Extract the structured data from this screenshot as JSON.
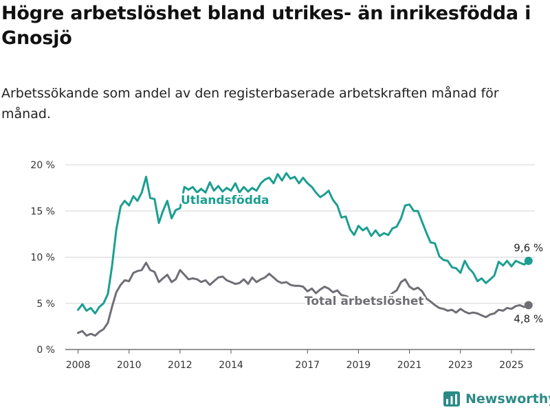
{
  "title": "Högre arbetslöshet bland utrikes- än inrikesfödda i Gnosjö",
  "subtitle": "Arbetssökande som andel av den registerbaserade arbetskraften månad för månad.",
  "brand": {
    "name": "Newsworthy",
    "icon": "bar-chart-logo-icon"
  },
  "colors": {
    "foreign_born": "#1b9e91",
    "total": "#706e75",
    "grid": "#d4d4d4",
    "brand": "#2b8a86"
  },
  "chart_data": {
    "type": "line",
    "title": "Högre arbetslöshet bland utrikes- än inrikesfödda i Gnosjö",
    "subtitle": "Arbetssökande som andel av den registerbaserade arbetskraften månad för månad.",
    "xlabel": "",
    "ylabel": "",
    "xlim": [
      2007.5,
      2025.92
    ],
    "ylim": [
      0,
      20
    ],
    "grid": true,
    "legend": "inline labels",
    "x_ticks": [
      {
        "value": 2008,
        "label": "2008"
      },
      {
        "value": 2010,
        "label": "2010"
      },
      {
        "value": 2012,
        "label": "2012"
      },
      {
        "value": 2014,
        "label": "2014"
      },
      {
        "value": 2017,
        "label": "2017"
      },
      {
        "value": 2019,
        "label": "2019"
      },
      {
        "value": 2021,
        "label": "2021"
      },
      {
        "value": 2023,
        "label": "2023"
      },
      {
        "value": 2025,
        "label": "2025"
      }
    ],
    "y_ticks": [
      {
        "value": 0,
        "label": "0 %"
      },
      {
        "value": 5,
        "label": "5 %"
      },
      {
        "value": 10,
        "label": "10 %"
      },
      {
        "value": 15,
        "label": "15 %"
      },
      {
        "value": 20,
        "label": "20 %"
      }
    ],
    "series": [
      {
        "name": "Utlandsfödda",
        "color": "#1b9e91",
        "end_label": "9,6 %",
        "points": [
          [
            2008.0,
            4.3
          ],
          [
            2008.17,
            4.9
          ],
          [
            2008.33,
            4.2
          ],
          [
            2008.5,
            4.5
          ],
          [
            2008.67,
            3.9
          ],
          [
            2008.83,
            4.6
          ],
          [
            2009.0,
            5.0
          ],
          [
            2009.17,
            6.0
          ],
          [
            2009.33,
            9.0
          ],
          [
            2009.5,
            13.0
          ],
          [
            2009.67,
            15.5
          ],
          [
            2009.83,
            16.1
          ],
          [
            2010.0,
            15.6
          ],
          [
            2010.17,
            16.6
          ],
          [
            2010.33,
            16.1
          ],
          [
            2010.5,
            17.0
          ],
          [
            2010.67,
            18.7
          ],
          [
            2010.83,
            16.4
          ],
          [
            2011.0,
            16.3
          ],
          [
            2011.17,
            13.7
          ],
          [
            2011.33,
            15.0
          ],
          [
            2011.5,
            16.1
          ],
          [
            2011.67,
            14.2
          ],
          [
            2011.83,
            15.1
          ],
          [
            2012.0,
            15.3
          ],
          [
            2012.17,
            17.6
          ],
          [
            2012.33,
            17.3
          ],
          [
            2012.5,
            17.6
          ],
          [
            2012.67,
            17.0
          ],
          [
            2012.83,
            17.4
          ],
          [
            2013.0,
            17.0
          ],
          [
            2013.17,
            18.1
          ],
          [
            2013.33,
            17.2
          ],
          [
            2013.5,
            17.7
          ],
          [
            2013.67,
            17.1
          ],
          [
            2013.83,
            17.5
          ],
          [
            2014.0,
            17.2
          ],
          [
            2014.17,
            18.0
          ],
          [
            2014.33,
            17.0
          ],
          [
            2014.5,
            17.6
          ],
          [
            2014.67,
            17.1
          ],
          [
            2014.83,
            17.5
          ],
          [
            2015.0,
            17.2
          ],
          [
            2015.17,
            18.0
          ],
          [
            2015.33,
            18.4
          ],
          [
            2015.5,
            18.6
          ],
          [
            2015.67,
            18.0
          ],
          [
            2015.83,
            19.0
          ],
          [
            2016.0,
            18.3
          ],
          [
            2016.17,
            19.1
          ],
          [
            2016.33,
            18.5
          ],
          [
            2016.5,
            18.7
          ],
          [
            2016.67,
            18.0
          ],
          [
            2016.83,
            18.6
          ],
          [
            2017.0,
            18.0
          ],
          [
            2017.17,
            17.6
          ],
          [
            2017.33,
            17.0
          ],
          [
            2017.5,
            16.5
          ],
          [
            2017.67,
            16.8
          ],
          [
            2017.83,
            17.2
          ],
          [
            2018.0,
            16.2
          ],
          [
            2018.17,
            15.6
          ],
          [
            2018.33,
            14.3
          ],
          [
            2018.5,
            14.4
          ],
          [
            2018.67,
            13.0
          ],
          [
            2018.83,
            12.4
          ],
          [
            2019.0,
            13.4
          ],
          [
            2019.17,
            12.9
          ],
          [
            2019.33,
            13.2
          ],
          [
            2019.5,
            12.3
          ],
          [
            2019.67,
            12.9
          ],
          [
            2019.83,
            12.3
          ],
          [
            2020.0,
            12.6
          ],
          [
            2020.17,
            12.4
          ],
          [
            2020.33,
            13.1
          ],
          [
            2020.5,
            13.3
          ],
          [
            2020.67,
            14.2
          ],
          [
            2020.83,
            15.6
          ],
          [
            2021.0,
            15.7
          ],
          [
            2021.17,
            15.0
          ],
          [
            2021.33,
            15.0
          ],
          [
            2021.5,
            13.8
          ],
          [
            2021.67,
            12.6
          ],
          [
            2021.83,
            11.6
          ],
          [
            2022.0,
            11.5
          ],
          [
            2022.17,
            10.1
          ],
          [
            2022.33,
            9.7
          ],
          [
            2022.5,
            9.6
          ],
          [
            2022.67,
            8.9
          ],
          [
            2022.83,
            8.8
          ],
          [
            2023.0,
            8.3
          ],
          [
            2023.17,
            9.6
          ],
          [
            2023.33,
            8.8
          ],
          [
            2023.5,
            8.3
          ],
          [
            2023.67,
            7.4
          ],
          [
            2023.83,
            7.7
          ],
          [
            2024.0,
            7.2
          ],
          [
            2024.17,
            7.6
          ],
          [
            2024.33,
            8.0
          ],
          [
            2024.5,
            9.5
          ],
          [
            2024.67,
            9.1
          ],
          [
            2024.83,
            9.6
          ],
          [
            2025.0,
            9.0
          ],
          [
            2025.17,
            9.6
          ],
          [
            2025.33,
            9.4
          ],
          [
            2025.5,
            9.2
          ],
          [
            2025.67,
            9.6
          ]
        ]
      },
      {
        "name": "Total arbetslöshet",
        "color": "#706e75",
        "end_label": "4,8 %",
        "points": [
          [
            2008.0,
            1.8
          ],
          [
            2008.17,
            2.0
          ],
          [
            2008.33,
            1.5
          ],
          [
            2008.5,
            1.7
          ],
          [
            2008.67,
            1.5
          ],
          [
            2008.83,
            1.9
          ],
          [
            2009.0,
            2.2
          ],
          [
            2009.17,
            2.9
          ],
          [
            2009.33,
            4.6
          ],
          [
            2009.5,
            6.2
          ],
          [
            2009.67,
            7.0
          ],
          [
            2009.83,
            7.5
          ],
          [
            2010.0,
            7.4
          ],
          [
            2010.17,
            8.3
          ],
          [
            2010.33,
            8.5
          ],
          [
            2010.5,
            8.6
          ],
          [
            2010.67,
            9.4
          ],
          [
            2010.83,
            8.6
          ],
          [
            2011.0,
            8.4
          ],
          [
            2011.17,
            7.3
          ],
          [
            2011.33,
            7.7
          ],
          [
            2011.5,
            8.1
          ],
          [
            2011.67,
            7.3
          ],
          [
            2011.83,
            7.6
          ],
          [
            2012.0,
            8.6
          ],
          [
            2012.17,
            8.1
          ],
          [
            2012.33,
            7.6
          ],
          [
            2012.5,
            7.7
          ],
          [
            2012.67,
            7.6
          ],
          [
            2012.83,
            7.3
          ],
          [
            2013.0,
            7.5
          ],
          [
            2013.17,
            7.0
          ],
          [
            2013.33,
            7.4
          ],
          [
            2013.5,
            7.8
          ],
          [
            2013.67,
            7.9
          ],
          [
            2013.83,
            7.5
          ],
          [
            2014.0,
            7.3
          ],
          [
            2014.17,
            7.1
          ],
          [
            2014.33,
            7.2
          ],
          [
            2014.5,
            7.6
          ],
          [
            2014.67,
            7.1
          ],
          [
            2014.83,
            7.8
          ],
          [
            2015.0,
            7.3
          ],
          [
            2015.17,
            7.6
          ],
          [
            2015.33,
            7.8
          ],
          [
            2015.5,
            8.2
          ],
          [
            2015.67,
            7.8
          ],
          [
            2015.83,
            7.4
          ],
          [
            2016.0,
            7.2
          ],
          [
            2016.17,
            7.3
          ],
          [
            2016.33,
            7.0
          ],
          [
            2016.5,
            6.9
          ],
          [
            2016.67,
            6.9
          ],
          [
            2016.83,
            6.8
          ],
          [
            2017.0,
            6.3
          ],
          [
            2017.17,
            6.6
          ],
          [
            2017.33,
            6.1
          ],
          [
            2017.5,
            6.5
          ],
          [
            2017.67,
            6.8
          ],
          [
            2017.83,
            6.6
          ],
          [
            2018.0,
            6.2
          ],
          [
            2018.17,
            6.4
          ],
          [
            2018.33,
            5.9
          ],
          [
            2018.5,
            5.8
          ],
          [
            2018.67,
            5.6
          ],
          [
            2018.83,
            5.4
          ],
          [
            2019.0,
            5.5
          ],
          [
            2019.17,
            5.3
          ],
          [
            2019.33,
            5.4
          ],
          [
            2019.5,
            5.2
          ],
          [
            2019.67,
            5.4
          ],
          [
            2019.83,
            5.2
          ],
          [
            2020.0,
            5.4
          ],
          [
            2020.17,
            5.7
          ],
          [
            2020.33,
            6.1
          ],
          [
            2020.5,
            6.4
          ],
          [
            2020.67,
            7.3
          ],
          [
            2020.83,
            7.6
          ],
          [
            2021.0,
            6.8
          ],
          [
            2021.17,
            6.5
          ],
          [
            2021.33,
            6.7
          ],
          [
            2021.5,
            6.3
          ],
          [
            2021.67,
            5.5
          ],
          [
            2021.83,
            5.2
          ],
          [
            2022.0,
            4.8
          ],
          [
            2022.17,
            4.5
          ],
          [
            2022.33,
            4.4
          ],
          [
            2022.5,
            4.2
          ],
          [
            2022.67,
            4.3
          ],
          [
            2022.83,
            4.0
          ],
          [
            2023.0,
            4.4
          ],
          [
            2023.17,
            4.1
          ],
          [
            2023.33,
            3.9
          ],
          [
            2023.5,
            4.0
          ],
          [
            2023.67,
            3.9
          ],
          [
            2023.83,
            3.7
          ],
          [
            2024.0,
            3.5
          ],
          [
            2024.17,
            3.8
          ],
          [
            2024.33,
            3.9
          ],
          [
            2024.5,
            4.3
          ],
          [
            2024.67,
            4.2
          ],
          [
            2024.83,
            4.5
          ],
          [
            2025.0,
            4.4
          ],
          [
            2025.17,
            4.7
          ],
          [
            2025.33,
            4.8
          ],
          [
            2025.5,
            4.6
          ],
          [
            2025.67,
            4.8
          ]
        ]
      }
    ]
  }
}
